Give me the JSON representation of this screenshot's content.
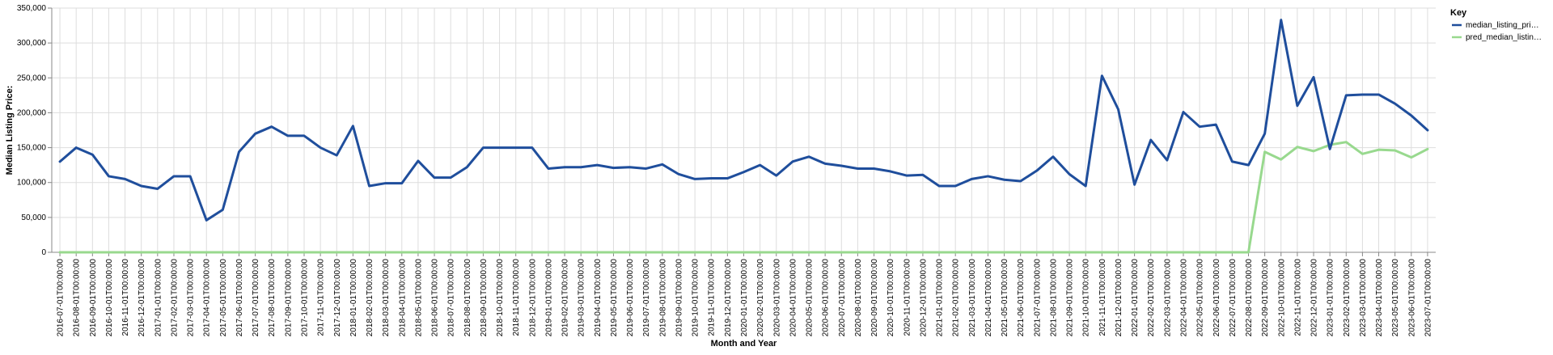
{
  "chart_data": {
    "type": "line",
    "xlabel": "Month and Year",
    "ylabel": "Median Listing Price:",
    "ylim": [
      0,
      350000
    ],
    "yticks": [
      "0",
      "50,000",
      "100,000",
      "150,000",
      "200,000",
      "250,000",
      "300,000",
      "350,000"
    ],
    "ytick_values": [
      0,
      50000,
      100000,
      150000,
      200000,
      250000,
      300000,
      350000
    ],
    "grid": true,
    "legend_position": "top-right",
    "legend_title": "Key",
    "x": [
      "2016-07-01T00:00:00",
      "2016-08-01T00:00:00",
      "2016-09-01T00:00:00",
      "2016-10-01T00:00:00",
      "2016-11-01T00:00:00",
      "2016-12-01T00:00:00",
      "2017-01-01T00:00:00",
      "2017-02-01T00:00:00",
      "2017-03-01T00:00:00",
      "2017-04-01T00:00:00",
      "2017-05-01T00:00:00",
      "2017-06-01T00:00:00",
      "2017-07-01T00:00:00",
      "2017-08-01T00:00:00",
      "2017-09-01T00:00:00",
      "2017-10-01T00:00:00",
      "2017-11-01T00:00:00",
      "2017-12-01T00:00:00",
      "2018-01-01T00:00:00",
      "2018-02-01T00:00:00",
      "2018-03-01T00:00:00",
      "2018-04-01T00:00:00",
      "2018-05-01T00:00:00",
      "2018-06-01T00:00:00",
      "2018-07-01T00:00:00",
      "2018-08-01T00:00:00",
      "2018-09-01T00:00:00",
      "2018-10-01T00:00:00",
      "2018-11-01T00:00:00",
      "2018-12-01T00:00:00",
      "2019-01-01T00:00:00",
      "2019-02-01T00:00:00",
      "2019-03-01T00:00:00",
      "2019-04-01T00:00:00",
      "2019-05-01T00:00:00",
      "2019-06-01T00:00:00",
      "2019-07-01T00:00:00",
      "2019-08-01T00:00:00",
      "2019-09-01T00:00:00",
      "2019-10-01T00:00:00",
      "2019-11-01T00:00:00",
      "2019-12-01T00:00:00",
      "2020-01-01T00:00:00",
      "2020-02-01T00:00:00",
      "2020-03-01T00:00:00",
      "2020-04-01T00:00:00",
      "2020-05-01T00:00:00",
      "2020-06-01T00:00:00",
      "2020-07-01T00:00:00",
      "2020-08-01T00:00:00",
      "2020-09-01T00:00:00",
      "2020-10-01T00:00:00",
      "2020-11-01T00:00:00",
      "2020-12-01T00:00:00",
      "2021-01-01T00:00:00",
      "2021-02-01T00:00:00",
      "2021-03-01T00:00:00",
      "2021-04-01T00:00:00",
      "2021-05-01T00:00:00",
      "2021-06-01T00:00:00",
      "2021-07-01T00:00:00",
      "2021-08-01T00:00:00",
      "2021-09-01T00:00:00",
      "2021-10-01T00:00:00",
      "2021-11-01T00:00:00",
      "2021-12-01T00:00:00",
      "2022-01-01T00:00:00",
      "2022-02-01T00:00:00",
      "2022-03-01T00:00:00",
      "2022-04-01T00:00:00",
      "2022-05-01T00:00:00",
      "2022-06-01T00:00:00",
      "2022-07-01T00:00:00",
      "2022-08-01T00:00:00",
      "2022-09-01T00:00:00",
      "2022-10-01T00:00:00",
      "2022-11-01T00:00:00",
      "2022-12-01T00:00:00",
      "2023-01-01T00:00:00",
      "2023-02-01T00:00:00",
      "2023-03-01T00:00:00",
      "2023-04-01T00:00:00",
      "2023-05-01T00:00:00",
      "2023-06-01T00:00:00",
      "2023-07-01T00:00:00"
    ],
    "series": [
      {
        "name": "median_listing_pri…",
        "color": "#1f4e9c",
        "values": [
          130000,
          150000,
          140000,
          109000,
          105000,
          95000,
          91000,
          109000,
          109000,
          46000,
          61000,
          144000,
          170000,
          180000,
          167000,
          167000,
          150000,
          139000,
          181000,
          95000,
          99000,
          99000,
          131000,
          107000,
          107000,
          122000,
          150000,
          150000,
          150000,
          150000,
          120000,
          122000,
          122000,
          125000,
          121000,
          122000,
          120000,
          126000,
          112000,
          105000,
          106000,
          106000,
          115000,
          125000,
          110000,
          130000,
          137000,
          127000,
          124000,
          120000,
          120000,
          116000,
          110000,
          111000,
          95000,
          95000,
          105000,
          109000,
          104000,
          102000,
          117000,
          137000,
          112000,
          95000,
          253000,
          205000,
          97000,
          161000,
          132000,
          201000,
          180000,
          183000,
          130000,
          125000,
          170000,
          333000,
          210000,
          251000,
          148000,
          225000,
          226000,
          226000,
          213000,
          196000,
          175000
        ]
      },
      {
        "name": "pred_median_listin…",
        "color": "#98d98e",
        "values": [
          0,
          0,
          0,
          0,
          0,
          0,
          0,
          0,
          0,
          0,
          0,
          0,
          0,
          0,
          0,
          0,
          0,
          0,
          0,
          0,
          0,
          0,
          0,
          0,
          0,
          0,
          0,
          0,
          0,
          0,
          0,
          0,
          0,
          0,
          0,
          0,
          0,
          0,
          0,
          0,
          0,
          0,
          0,
          0,
          0,
          0,
          0,
          0,
          0,
          0,
          0,
          0,
          0,
          0,
          0,
          0,
          0,
          0,
          0,
          0,
          0,
          0,
          0,
          0,
          0,
          0,
          0,
          0,
          0,
          0,
          0,
          0,
          0,
          0,
          144000,
          133000,
          151000,
          145000,
          154000,
          158000,
          141000,
          147000,
          146000,
          136000,
          148000
        ]
      }
    ]
  }
}
